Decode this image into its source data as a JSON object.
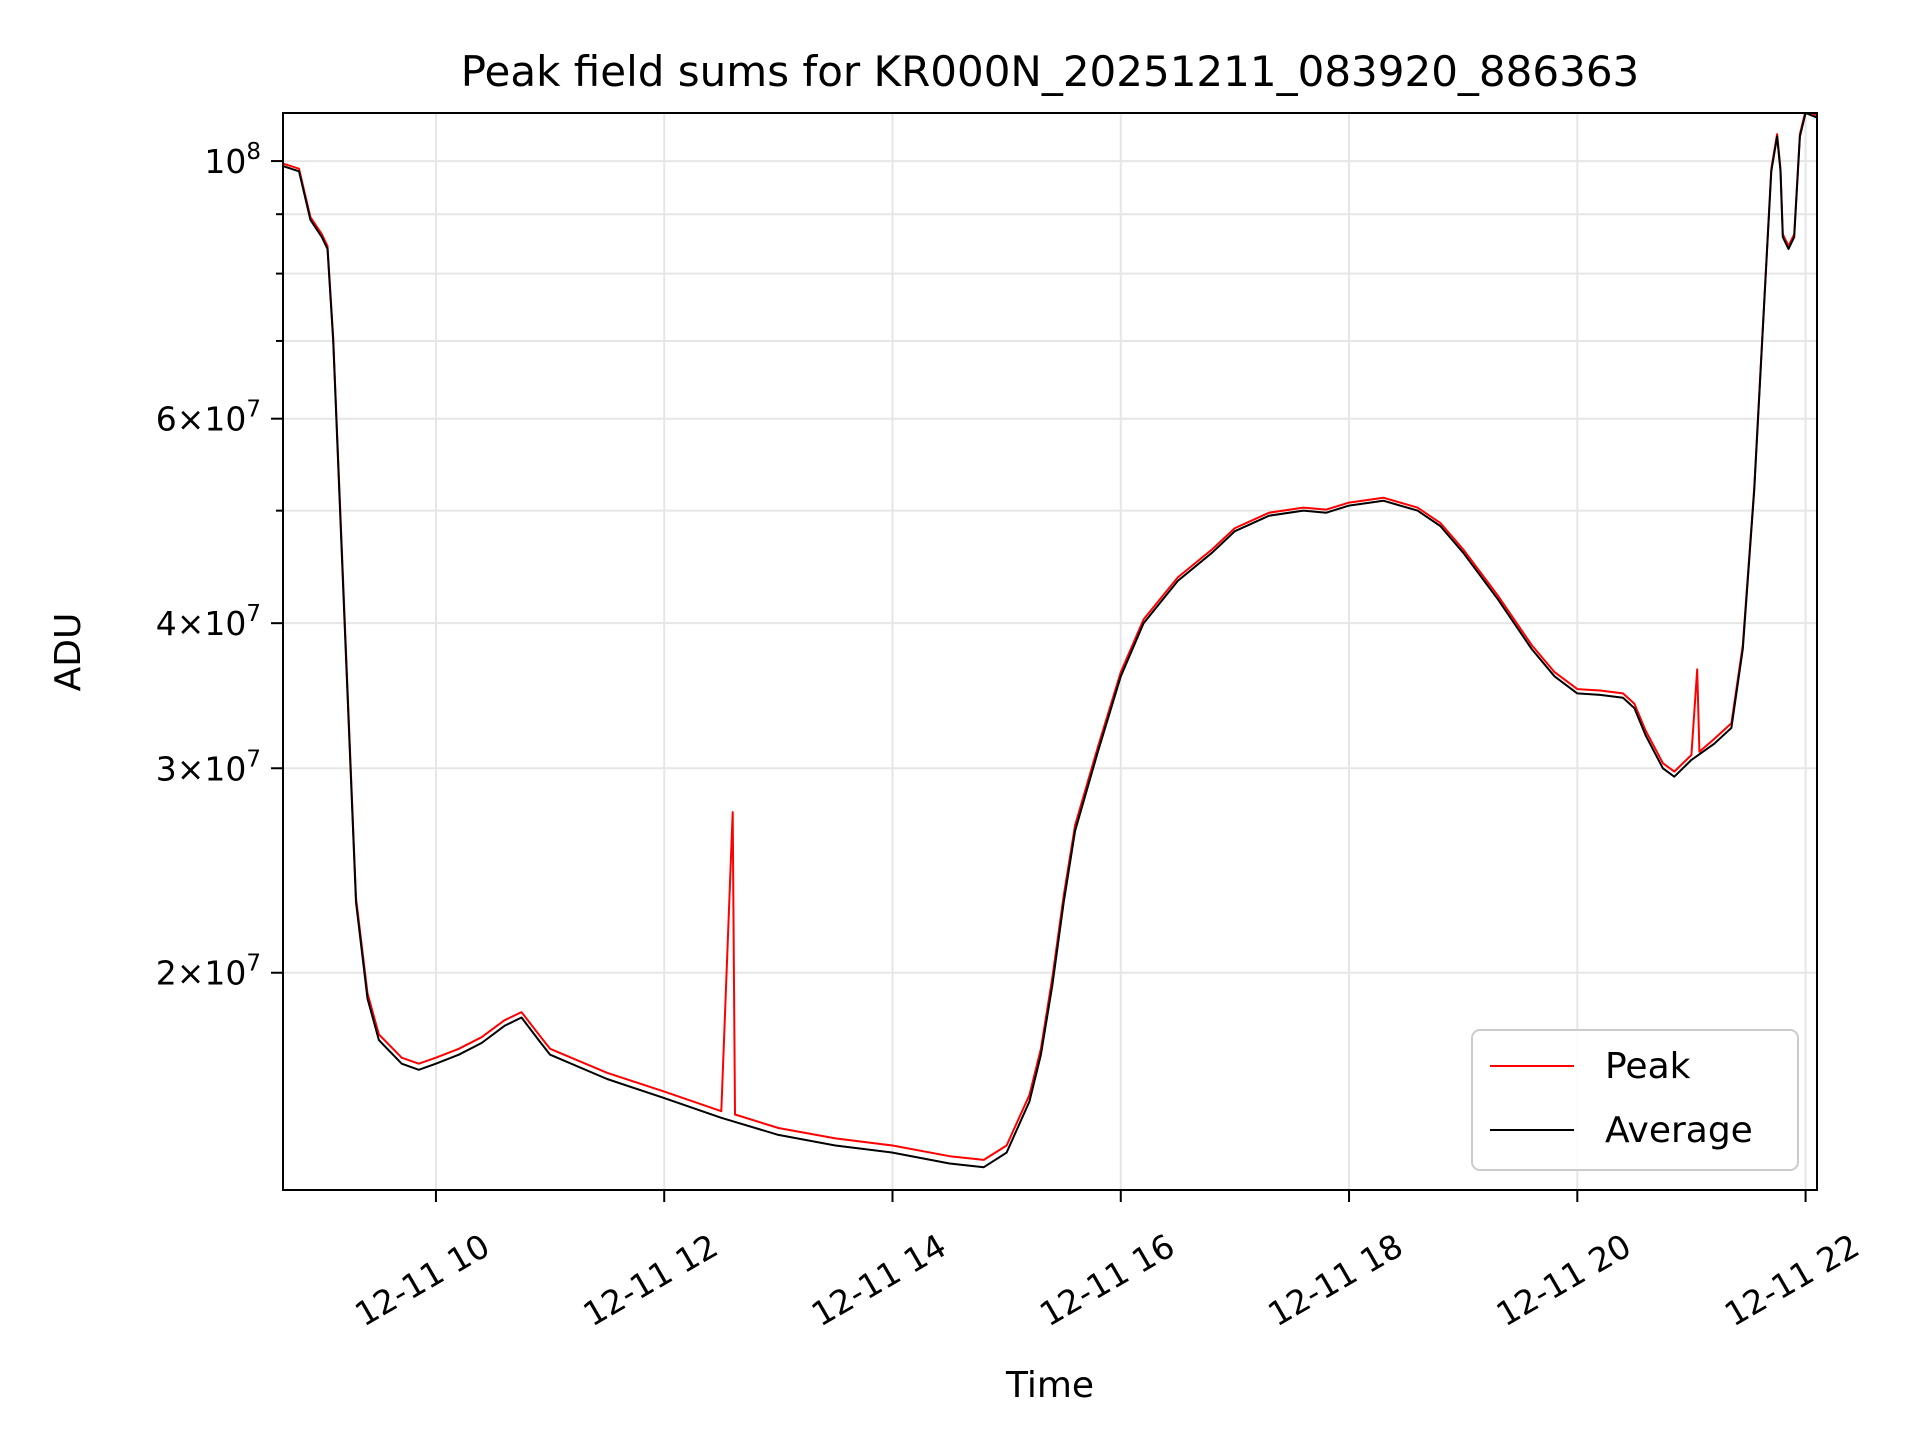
{
  "chart_data": {
    "type": "line",
    "title": "Peak field sums for KR000N_20251211_083920_886363",
    "xlabel": "Time",
    "ylabel": "ADU",
    "x_unit": "hours on 2025-12-11",
    "xlim": [
      8.66,
      22.1
    ],
    "ylim": [
      13000000,
      110000000
    ],
    "yscale": "log",
    "grid": true,
    "legend_position": "lower-right",
    "x_ticks": [
      {
        "value": 10,
        "label": "12-11 10"
      },
      {
        "value": 12,
        "label": "12-11 12"
      },
      {
        "value": 14,
        "label": "12-11 14"
      },
      {
        "value": 16,
        "label": "12-11 16"
      },
      {
        "value": 18,
        "label": "12-11 18"
      },
      {
        "value": 20,
        "label": "12-11 20"
      },
      {
        "value": 22,
        "label": "12-11 22"
      }
    ],
    "y_ticks": [
      {
        "value": 20000000,
        "coef": "2",
        "exp": "7"
      },
      {
        "value": 30000000,
        "coef": "3",
        "exp": "7"
      },
      {
        "value": 40000000,
        "coef": "4",
        "exp": "7"
      },
      {
        "value": 60000000,
        "coef": "6",
        "exp": "7"
      },
      {
        "value": 100000000,
        "coef": "",
        "exp": "8"
      }
    ],
    "y_minor_ticks": [
      50000000,
      70000000,
      80000000,
      90000000
    ],
    "series": [
      {
        "name": "Average",
        "color": "#000000",
        "points": [
          [
            8.66,
            99000000
          ],
          [
            8.8,
            98000000
          ],
          [
            8.9,
            89000000
          ],
          [
            9.0,
            86000000
          ],
          [
            9.05,
            84000000
          ],
          [
            9.1,
            70000000
          ],
          [
            9.2,
            40000000
          ],
          [
            9.3,
            23000000
          ],
          [
            9.4,
            19000000
          ],
          [
            9.5,
            17500000
          ],
          [
            9.7,
            16700000
          ],
          [
            9.85,
            16500000
          ],
          [
            10.0,
            16700000
          ],
          [
            10.2,
            17000000
          ],
          [
            10.4,
            17400000
          ],
          [
            10.6,
            18000000
          ],
          [
            10.75,
            18300000
          ],
          [
            10.9,
            17500000
          ],
          [
            11.0,
            17000000
          ],
          [
            11.5,
            16200000
          ],
          [
            12.0,
            15600000
          ],
          [
            12.5,
            15000000
          ],
          [
            13.0,
            14500000
          ],
          [
            13.5,
            14200000
          ],
          [
            14.0,
            14000000
          ],
          [
            14.5,
            13700000
          ],
          [
            14.8,
            13600000
          ],
          [
            15.0,
            14000000
          ],
          [
            15.2,
            15500000
          ],
          [
            15.3,
            17000000
          ],
          [
            15.4,
            19500000
          ],
          [
            15.5,
            23000000
          ],
          [
            15.6,
            26500000
          ],
          [
            15.8,
            31000000
          ],
          [
            16.0,
            36000000
          ],
          [
            16.2,
            40000000
          ],
          [
            16.5,
            43500000
          ],
          [
            16.8,
            46000000
          ],
          [
            17.0,
            48000000
          ],
          [
            17.3,
            49500000
          ],
          [
            17.6,
            50000000
          ],
          [
            17.8,
            49800000
          ],
          [
            18.0,
            50500000
          ],
          [
            18.3,
            51000000
          ],
          [
            18.6,
            50000000
          ],
          [
            18.8,
            48500000
          ],
          [
            19.0,
            46000000
          ],
          [
            19.3,
            42000000
          ],
          [
            19.6,
            38000000
          ],
          [
            19.8,
            36000000
          ],
          [
            20.0,
            34800000
          ],
          [
            20.2,
            34700000
          ],
          [
            20.4,
            34500000
          ],
          [
            20.5,
            33800000
          ],
          [
            20.6,
            32000000
          ],
          [
            20.75,
            30000000
          ],
          [
            20.85,
            29500000
          ],
          [
            21.0,
            30500000
          ],
          [
            21.2,
            31500000
          ],
          [
            21.35,
            32500000
          ],
          [
            21.45,
            38000000
          ],
          [
            21.55,
            52000000
          ],
          [
            21.62,
            70000000
          ],
          [
            21.7,
            98000000
          ],
          [
            21.75,
            105000000
          ],
          [
            21.78,
            98000000
          ],
          [
            21.8,
            86000000
          ],
          [
            21.85,
            84000000
          ],
          [
            21.9,
            86000000
          ],
          [
            21.95,
            105000000
          ],
          [
            22.0,
            110000000
          ],
          [
            22.1,
            109000000
          ]
        ]
      },
      {
        "name": "Peak",
        "color": "#ff0000",
        "points": [
          [
            8.66,
            99500000
          ],
          [
            8.8,
            98500000
          ],
          [
            8.9,
            89500000
          ],
          [
            9.0,
            86500000
          ],
          [
            9.05,
            84500000
          ],
          [
            9.1,
            70500000
          ],
          [
            9.2,
            40500000
          ],
          [
            9.3,
            23200000
          ],
          [
            9.4,
            19200000
          ],
          [
            9.5,
            17700000
          ],
          [
            9.7,
            16900000
          ],
          [
            9.85,
            16700000
          ],
          [
            10.0,
            16900000
          ],
          [
            10.2,
            17200000
          ],
          [
            10.4,
            17600000
          ],
          [
            10.6,
            18200000
          ],
          [
            10.75,
            18500000
          ],
          [
            10.9,
            17700000
          ],
          [
            11.0,
            17200000
          ],
          [
            11.5,
            16400000
          ],
          [
            12.0,
            15800000
          ],
          [
            12.5,
            15200000
          ],
          [
            12.6,
            27500000
          ],
          [
            12.62,
            15100000
          ],
          [
            13.0,
            14700000
          ],
          [
            13.5,
            14400000
          ],
          [
            14.0,
            14200000
          ],
          [
            14.5,
            13900000
          ],
          [
            14.8,
            13800000
          ],
          [
            15.0,
            14200000
          ],
          [
            15.2,
            15700000
          ],
          [
            15.3,
            17200000
          ],
          [
            15.4,
            19800000
          ],
          [
            15.5,
            23300000
          ],
          [
            15.6,
            26800000
          ],
          [
            15.8,
            31300000
          ],
          [
            16.0,
            36300000
          ],
          [
            16.2,
            40300000
          ],
          [
            16.5,
            43800000
          ],
          [
            16.8,
            46300000
          ],
          [
            17.0,
            48300000
          ],
          [
            17.3,
            49800000
          ],
          [
            17.6,
            50300000
          ],
          [
            17.8,
            50100000
          ],
          [
            18.0,
            50800000
          ],
          [
            18.3,
            51300000
          ],
          [
            18.6,
            50300000
          ],
          [
            18.8,
            48800000
          ],
          [
            19.0,
            46300000
          ],
          [
            19.3,
            42300000
          ],
          [
            19.6,
            38300000
          ],
          [
            19.8,
            36300000
          ],
          [
            20.0,
            35100000
          ],
          [
            20.2,
            35000000
          ],
          [
            20.4,
            34800000
          ],
          [
            20.5,
            34100000
          ],
          [
            20.6,
            32300000
          ],
          [
            20.75,
            30300000
          ],
          [
            20.85,
            29800000
          ],
          [
            21.0,
            30800000
          ],
          [
            21.05,
            36500000
          ],
          [
            21.07,
            31000000
          ],
          [
            21.2,
            31800000
          ],
          [
            21.35,
            32800000
          ],
          [
            21.45,
            38300000
          ],
          [
            21.55,
            52300000
          ],
          [
            21.62,
            70300000
          ],
          [
            21.7,
            98500000
          ],
          [
            21.75,
            105500000
          ],
          [
            21.78,
            98500000
          ],
          [
            21.8,
            86500000
          ],
          [
            21.85,
            84500000
          ],
          [
            21.9,
            86500000
          ],
          [
            21.95,
            105500000
          ],
          [
            22.0,
            110500000
          ],
          [
            22.1,
            109500000
          ]
        ]
      }
    ],
    "legend": [
      {
        "label": "Peak",
        "color": "#ff0000"
      },
      {
        "label": "Average",
        "color": "#000000"
      }
    ]
  }
}
